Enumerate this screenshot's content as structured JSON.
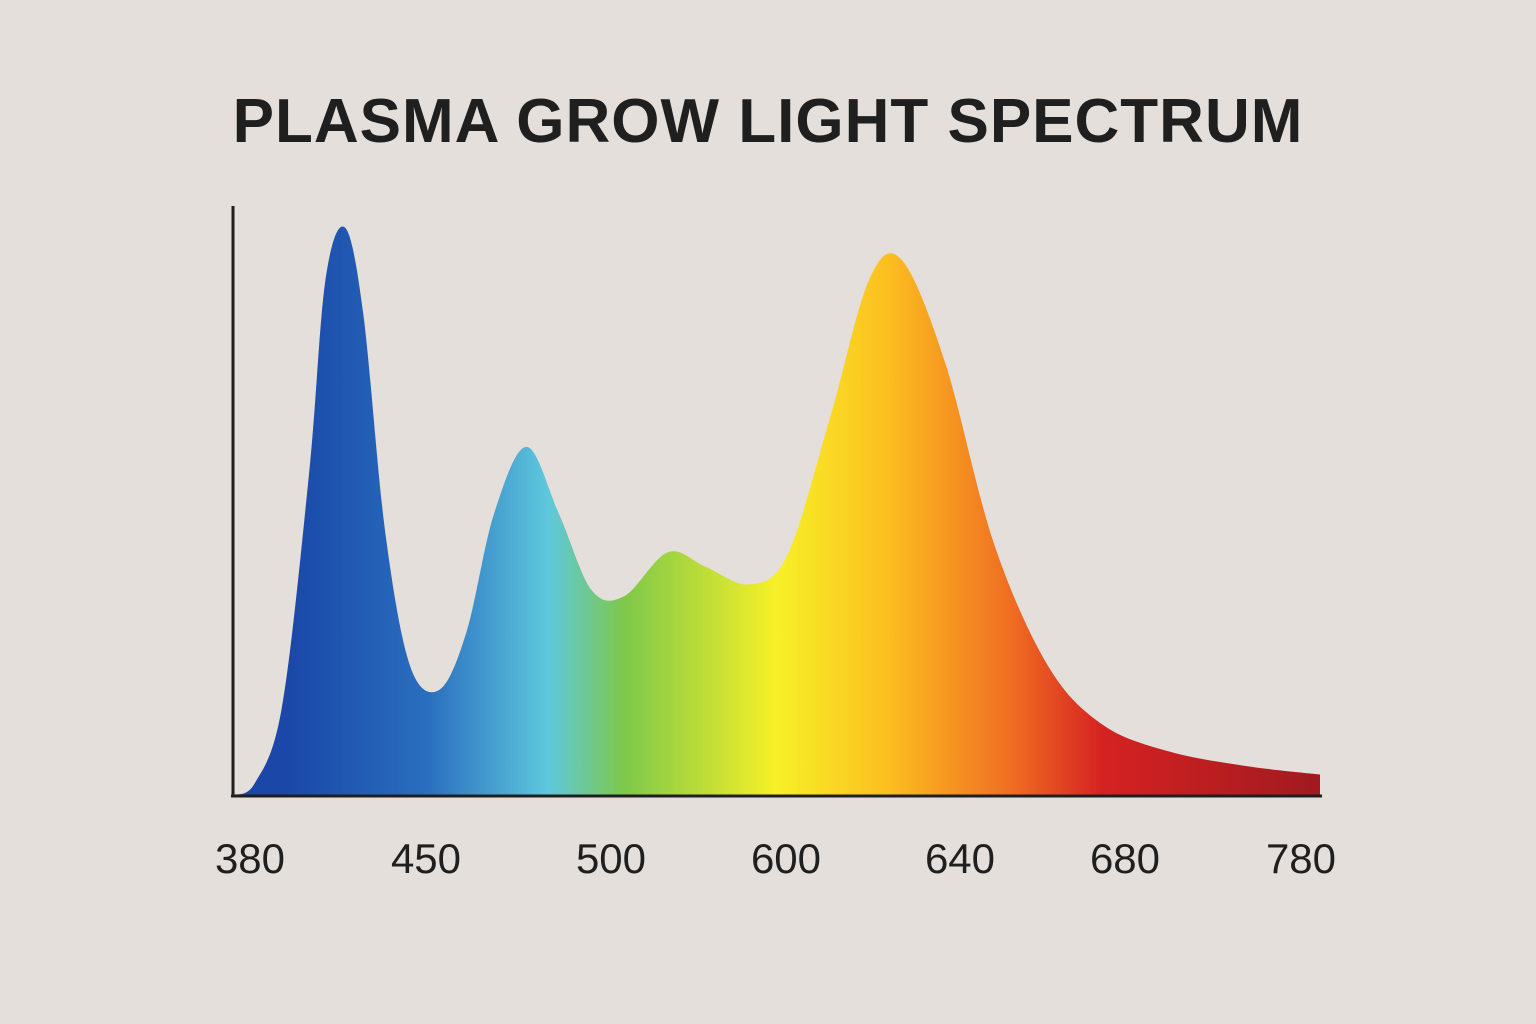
{
  "chart_data": {
    "type": "area",
    "title": "PLASMA GROW LIGHT SPECTRUM",
    "xlabel": "",
    "ylabel": "",
    "grid": false,
    "legend": "none",
    "x_tick_labels": [
      "380",
      "450",
      "500",
      "600",
      "640",
      "680",
      "780"
    ],
    "ylim": [
      0,
      1.0
    ],
    "series": [
      {
        "values": [
          {
            "x": 0.0,
            "y": 0.0
          },
          {
            "x": 0.02,
            "y": 0.02
          },
          {
            "x": 0.045,
            "y": 0.15
          },
          {
            "x": 0.07,
            "y": 0.55
          },
          {
            "x": 0.085,
            "y": 0.88
          },
          {
            "x": 0.103,
            "y": 0.97
          },
          {
            "x": 0.12,
            "y": 0.82
          },
          {
            "x": 0.14,
            "y": 0.45
          },
          {
            "x": 0.163,
            "y": 0.22
          },
          {
            "x": 0.19,
            "y": 0.18
          },
          {
            "x": 0.215,
            "y": 0.28
          },
          {
            "x": 0.24,
            "y": 0.48
          },
          {
            "x": 0.27,
            "y": 0.595
          },
          {
            "x": 0.3,
            "y": 0.48
          },
          {
            "x": 0.33,
            "y": 0.35
          },
          {
            "x": 0.36,
            "y": 0.34
          },
          {
            "x": 0.4,
            "y": 0.415
          },
          {
            "x": 0.435,
            "y": 0.39
          },
          {
            "x": 0.475,
            "y": 0.36
          },
          {
            "x": 0.51,
            "y": 0.41
          },
          {
            "x": 0.55,
            "y": 0.65
          },
          {
            "x": 0.585,
            "y": 0.88
          },
          {
            "x": 0.615,
            "y": 0.915
          },
          {
            "x": 0.655,
            "y": 0.74
          },
          {
            "x": 0.7,
            "y": 0.43
          },
          {
            "x": 0.75,
            "y": 0.22
          },
          {
            "x": 0.8,
            "y": 0.12
          },
          {
            "x": 0.86,
            "y": 0.075
          },
          {
            "x": 0.93,
            "y": 0.05
          },
          {
            "x": 1.0,
            "y": 0.035
          }
        ]
      }
    ],
    "gradient_colors": [
      "#1a47a8",
      "#2a6fbf",
      "#5ec8dd",
      "#7ec84a",
      "#f7f027",
      "#fcc020",
      "#ef6a22",
      "#d52222",
      "#a01a20"
    ]
  }
}
